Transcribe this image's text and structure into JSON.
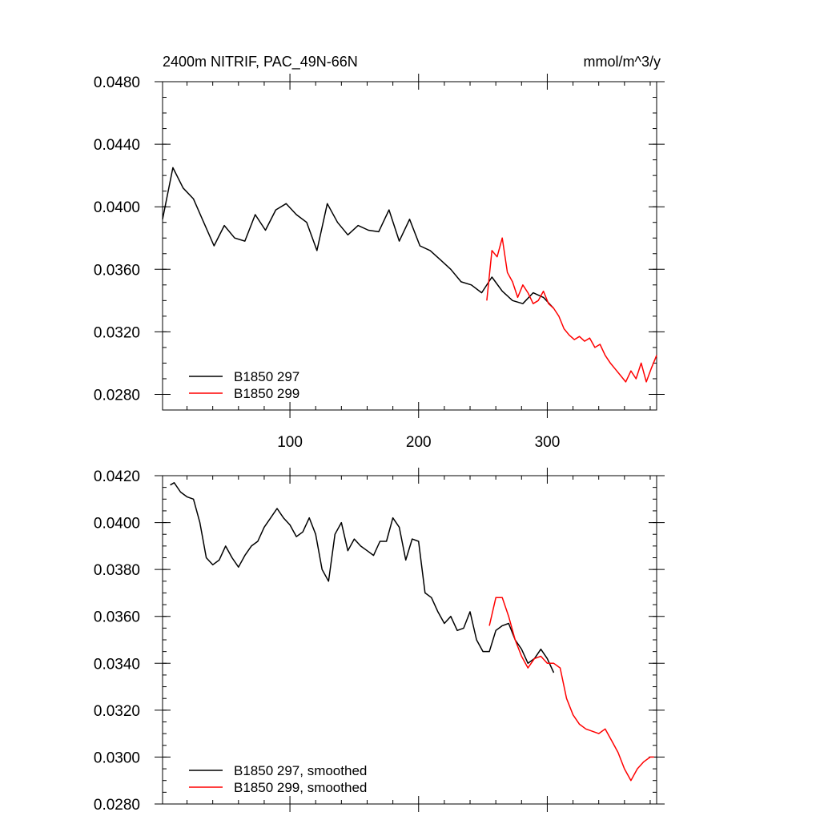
{
  "chart_data": [
    {
      "type": "line",
      "title": "2400m NITRIF, PAC_49N-66N",
      "units": "mmol/m^3/y",
      "xlim": [
        1,
        385
      ],
      "ylim": [
        0.027,
        0.048
      ],
      "x_ticks": [
        100,
        200,
        300
      ],
      "x_tick_labels": [
        "100",
        "200",
        "300"
      ],
      "y_ticks": [
        0.028,
        0.032,
        0.036,
        0.04,
        0.044,
        0.048
      ],
      "y_tick_labels": [
        "0.0280",
        "0.0320",
        "0.0360",
        "0.0400",
        "0.0440",
        "0.0480"
      ],
      "legend_position": "bottom-left",
      "series": [
        {
          "name": "B1850 297",
          "color": "#000000",
          "x": [
            1,
            9,
            17,
            25,
            33,
            41,
            49,
            57,
            65,
            73,
            81,
            89,
            97,
            105,
            113,
            121,
            129,
            137,
            145,
            153,
            161,
            169,
            177,
            185,
            193,
            201,
            209,
            217,
            225,
            233,
            241,
            249,
            257,
            265,
            273,
            281,
            289,
            297,
            305
          ],
          "values": [
            0.0392,
            0.0425,
            0.0412,
            0.0405,
            0.039,
            0.0375,
            0.0388,
            0.038,
            0.0378,
            0.0395,
            0.0385,
            0.0398,
            0.0402,
            0.0395,
            0.039,
            0.0372,
            0.0402,
            0.039,
            0.0382,
            0.0388,
            0.0385,
            0.0384,
            0.0398,
            0.0378,
            0.0392,
            0.0375,
            0.0372,
            0.0366,
            0.036,
            0.0352,
            0.035,
            0.0345,
            0.0355,
            0.0346,
            0.034,
            0.0338,
            0.0345,
            0.0342,
            0.0335
          ]
        },
        {
          "name": "B1850 299",
          "color": "#ff0000",
          "x": [
            253,
            257,
            261,
            265,
            269,
            273,
            277,
            281,
            285,
            289,
            293,
            297,
            301,
            305,
            309,
            313,
            317,
            321,
            325,
            329,
            333,
            337,
            341,
            345,
            349,
            353,
            357,
            361,
            365,
            369,
            373,
            377,
            381,
            385
          ],
          "values": [
            0.034,
            0.0372,
            0.0368,
            0.038,
            0.0358,
            0.0352,
            0.0342,
            0.035,
            0.0345,
            0.0338,
            0.034,
            0.0346,
            0.0338,
            0.0335,
            0.033,
            0.0322,
            0.0318,
            0.0315,
            0.0317,
            0.0314,
            0.0316,
            0.031,
            0.0312,
            0.0305,
            0.03,
            0.0296,
            0.0292,
            0.0288,
            0.0295,
            0.029,
            0.03,
            0.0288,
            0.0297,
            0.0305
          ]
        }
      ]
    },
    {
      "type": "line",
      "title": "",
      "xlim": [
        1,
        385
      ],
      "ylim": [
        0.028,
        0.042
      ],
      "x_ticks": [
        100,
        200,
        300
      ],
      "y_ticks": [
        0.028,
        0.03,
        0.032,
        0.034,
        0.036,
        0.038,
        0.04,
        0.042
      ],
      "y_tick_labels": [
        "0.0280",
        "0.0300",
        "0.0320",
        "0.0340",
        "0.0360",
        "0.0380",
        "0.0400",
        "0.0420"
      ],
      "legend_position": "bottom-left",
      "series": [
        {
          "name": "B1850 297, smoothed",
          "color": "#000000",
          "x": [
            7,
            10,
            15,
            20,
            25,
            30,
            35,
            40,
            45,
            50,
            55,
            60,
            65,
            70,
            75,
            80,
            85,
            90,
            95,
            100,
            105,
            110,
            115,
            120,
            125,
            130,
            135,
            140,
            145,
            150,
            155,
            160,
            165,
            170,
            175,
            180,
            185,
            190,
            195,
            200,
            205,
            210,
            215,
            220,
            225,
            230,
            235,
            240,
            245,
            250,
            255,
            260,
            265,
            270,
            275,
            280,
            285,
            290,
            295,
            300,
            305
          ],
          "values": [
            0.0416,
            0.0417,
            0.0413,
            0.0411,
            0.041,
            0.04,
            0.0385,
            0.0382,
            0.0384,
            0.039,
            0.0385,
            0.0381,
            0.0386,
            0.039,
            0.0392,
            0.0398,
            0.0402,
            0.0406,
            0.0402,
            0.0399,
            0.0394,
            0.0396,
            0.0402,
            0.0395,
            0.038,
            0.0375,
            0.0395,
            0.04,
            0.0388,
            0.0393,
            0.039,
            0.0388,
            0.0386,
            0.0392,
            0.0392,
            0.0402,
            0.0398,
            0.0384,
            0.0393,
            0.0392,
            0.037,
            0.0368,
            0.0362,
            0.0357,
            0.036,
            0.0354,
            0.0355,
            0.0362,
            0.035,
            0.0345,
            0.0345,
            0.0354,
            0.0356,
            0.0357,
            0.035,
            0.0346,
            0.034,
            0.0342,
            0.0346,
            0.0342,
            0.0336
          ]
        },
        {
          "name": "B1850 299, smoothed",
          "color": "#ff0000",
          "x": [
            255,
            260,
            265,
            270,
            275,
            280,
            285,
            290,
            295,
            300,
            305,
            310,
            315,
            320,
            325,
            330,
            335,
            340,
            345,
            350,
            355,
            360,
            365,
            370,
            375,
            380,
            383
          ],
          "values": [
            0.0356,
            0.0368,
            0.0368,
            0.036,
            0.035,
            0.0343,
            0.0338,
            0.0342,
            0.0343,
            0.034,
            0.034,
            0.0338,
            0.0325,
            0.0318,
            0.0314,
            0.0312,
            0.0311,
            0.031,
            0.0312,
            0.0307,
            0.0302,
            0.0295,
            0.029,
            0.0295,
            0.0298,
            0.03,
            0.03
          ]
        }
      ]
    }
  ]
}
